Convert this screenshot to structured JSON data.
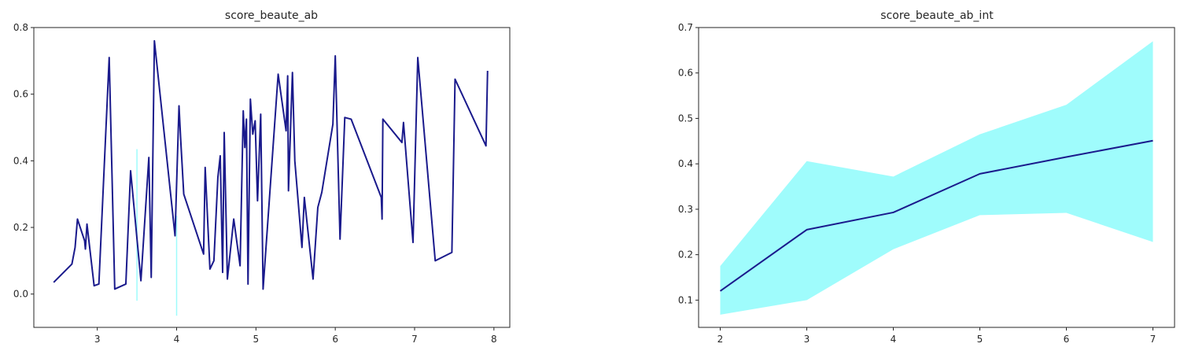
{
  "colors": {
    "line": "#1a1a8c",
    "band": "#9ffcfc",
    "axis": "#262626"
  },
  "chart_data": [
    {
      "type": "line",
      "title": "score_beaute_ab",
      "xlabel": "",
      "ylabel": "",
      "xlim": [
        2.2,
        8.2
      ],
      "ylim": [
        -0.1,
        0.8
      ],
      "xticks": [
        3,
        4,
        5,
        6,
        7,
        8
      ],
      "yticks": [
        0.0,
        0.2,
        0.4,
        0.6,
        0.8
      ],
      "x_tick_labels": [
        "3",
        "4",
        "5",
        "6",
        "7",
        "8"
      ],
      "y_tick_labels": [
        "0.0",
        "0.2",
        "0.4",
        "0.6",
        "0.8"
      ],
      "grid": false,
      "series": [
        {
          "x": [
            2.45,
            2.68,
            2.72,
            2.75,
            2.84,
            2.85,
            2.87,
            2.96,
            3.02,
            3.15,
            3.22,
            3.36,
            3.42,
            3.55,
            3.65,
            3.68,
            3.72,
            3.98,
            4.03,
            4.05,
            4.09,
            4.34,
            4.36,
            4.42,
            4.47,
            4.52,
            4.55,
            4.58,
            4.6,
            4.64,
            4.72,
            4.8,
            4.84,
            4.86,
            4.88,
            4.9,
            4.93,
            4.96,
            4.99,
            5.02,
            5.06,
            5.09,
            5.28,
            5.38,
            5.4,
            5.41,
            5.46,
            5.49,
            5.58,
            5.61,
            5.72,
            5.78,
            5.83,
            5.97,
            6.0,
            6.06,
            6.12,
            6.2,
            6.58,
            6.59,
            6.6,
            6.84,
            6.86,
            6.98,
            7.04,
            7.26,
            7.47,
            7.51,
            7.9,
            7.92
          ],
          "y": [
            0.035,
            0.09,
            0.14,
            0.225,
            0.16,
            0.135,
            0.21,
            0.025,
            0.03,
            0.71,
            0.015,
            0.03,
            0.37,
            0.04,
            0.41,
            0.05,
            0.76,
            0.175,
            0.565,
            0.47,
            0.3,
            0.12,
            0.38,
            0.075,
            0.1,
            0.35,
            0.415,
            0.065,
            0.485,
            0.045,
            0.225,
            0.085,
            0.55,
            0.44,
            0.525,
            0.03,
            0.585,
            0.48,
            0.52,
            0.28,
            0.54,
            0.015,
            0.66,
            0.49,
            0.655,
            0.31,
            0.665,
            0.4,
            0.14,
            0.29,
            0.045,
            0.26,
            0.305,
            0.51,
            0.715,
            0.165,
            0.53,
            0.525,
            0.29,
            0.225,
            0.525,
            0.455,
            0.515,
            0.155,
            0.71,
            0.1,
            0.125,
            0.645,
            0.445,
            0.67
          ]
        }
      ],
      "band_segments": [
        {
          "x": 3.5,
          "low": -0.02,
          "high": 0.435
        },
        {
          "x": 4.0,
          "low": -0.065,
          "high": 0.235
        }
      ]
    },
    {
      "type": "line",
      "title": "score_beaute_ab_int",
      "xlabel": "",
      "ylabel": "",
      "xlim": [
        1.75,
        7.25
      ],
      "ylim": [
        0.04,
        0.7
      ],
      "xticks": [
        2,
        3,
        4,
        5,
        6,
        7
      ],
      "yticks": [
        0.1,
        0.2,
        0.3,
        0.4,
        0.5,
        0.6,
        0.7
      ],
      "x_tick_labels": [
        "2",
        "3",
        "4",
        "5",
        "6",
        "7"
      ],
      "y_tick_labels": [
        "0.1",
        "0.2",
        "0.3",
        "0.4",
        "0.5",
        "0.6",
        "0.7"
      ],
      "grid": false,
      "series": [
        {
          "x": [
            2,
            3,
            4,
            5,
            6,
            7
          ],
          "y": [
            0.12,
            0.255,
            0.293,
            0.378,
            0.415,
            0.451
          ]
        }
      ],
      "band": {
        "x": [
          2,
          3,
          4,
          5,
          6,
          7
        ],
        "low": [
          0.068,
          0.1,
          0.212,
          0.287,
          0.292,
          0.228
        ],
        "high": [
          0.175,
          0.406,
          0.372,
          0.465,
          0.53,
          0.67
        ]
      }
    }
  ]
}
